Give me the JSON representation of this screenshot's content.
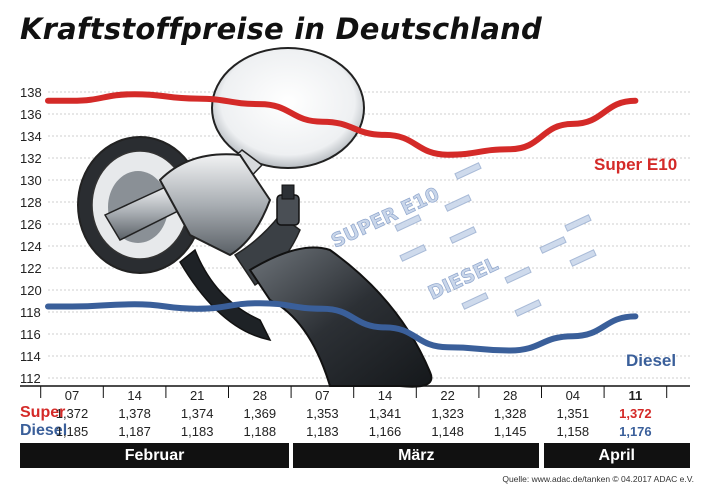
{
  "title": "Kraftstoffpreise in Deutschland",
  "chart_data": {
    "type": "line",
    "categories": [
      "07",
      "14",
      "21",
      "28",
      "07",
      "14",
      "22",
      "28",
      "04",
      "11"
    ],
    "x": [
      "07",
      "14",
      "21",
      "28",
      "07",
      "14",
      "22",
      "28",
      "04",
      "11"
    ],
    "ylim": [
      111,
      139
    ],
    "yticks": [
      112,
      114,
      116,
      118,
      120,
      122,
      124,
      126,
      128,
      130,
      132,
      134,
      136,
      138
    ],
    "grid": true,
    "series": [
      {
        "name": "Super E10",
        "color": "#d42a28",
        "values": [
          137.2,
          137.8,
          137.4,
          136.9,
          135.3,
          134.1,
          132.3,
          132.8,
          135.1,
          137.2
        ]
      },
      {
        "name": "Diesel",
        "color": "#3a5f9a",
        "values": [
          118.5,
          118.7,
          118.3,
          118.8,
          118.3,
          116.6,
          114.8,
          114.5,
          115.8,
          117.6
        ]
      }
    ],
    "months": [
      {
        "label": "Februar",
        "span": 4
      },
      {
        "label": "März",
        "span": 4
      },
      {
        "label": "April",
        "span": 2
      }
    ]
  },
  "table": {
    "dates": [
      "07",
      "14",
      "21",
      "28",
      "07",
      "14",
      "22",
      "28",
      "04",
      "11"
    ],
    "highlight_date": "11",
    "rows": [
      {
        "label": "Super",
        "color": "#d42a28",
        "highlight_color": "#d42a28",
        "values": [
          "1,372",
          "1,378",
          "1,374",
          "1,369",
          "1,353",
          "1,341",
          "1,323",
          "1,328",
          "1,351",
          "1,372"
        ]
      },
      {
        "label": "Diesel",
        "color": "#3a5f9a",
        "highlight_color": "#3a5f9a",
        "values": [
          "1,185",
          "1,187",
          "1,183",
          "1,188",
          "1,183",
          "1,166",
          "1,148",
          "1,145",
          "1,158",
          "1,176"
        ]
      }
    ]
  },
  "illustration_text": [
    "SUPER E10",
    "DIESEL"
  ],
  "source": "Quelle: www.adac.de/tanken  © 04.2017  ADAC e.V."
}
